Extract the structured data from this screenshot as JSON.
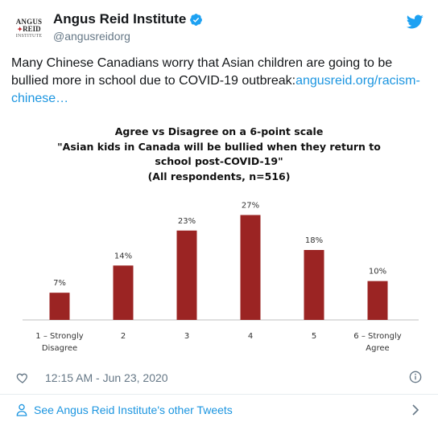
{
  "account": {
    "avatar_line1": "ANGUS",
    "avatar_line2": "REID",
    "avatar_line3": "INSTITUTE",
    "display_name": "Angus Reid Institute",
    "handle": "@angusreidorg"
  },
  "tweet": {
    "text": "Many Chinese Canadians worry that Asian children are going to be bullied more in school due to COVID-19 outbreak:",
    "link_text": "angusreid.org/racism-chinese…"
  },
  "chart_data": {
    "type": "bar",
    "title_lines": [
      "Agree vs Disagree on a 6-point scale",
      "\"Asian kids in Canada will be bullied when they return to",
      "school post-COVID-19\"",
      "(All respondents, n=516)"
    ],
    "categories": [
      [
        "1 – Strongly",
        "Disagree"
      ],
      [
        "2"
      ],
      [
        "3"
      ],
      [
        "4"
      ],
      [
        "5"
      ],
      [
        "6 – Strongly",
        "Agree"
      ]
    ],
    "values": [
      7,
      14,
      23,
      27,
      18,
      10
    ],
    "value_labels": [
      "7%",
      "14%",
      "23%",
      "27%",
      "18%",
      "10%"
    ],
    "ylim": [
      0,
      30
    ],
    "bar_color": "#9b2423",
    "grid": false
  },
  "meta": {
    "timestamp": "12:15 AM - Jun 23, 2020",
    "footer_link": "See Angus Reid Institute's other Tweets"
  },
  "colors": {
    "accent": "#1b95e0",
    "secondary_text": "#657786"
  }
}
